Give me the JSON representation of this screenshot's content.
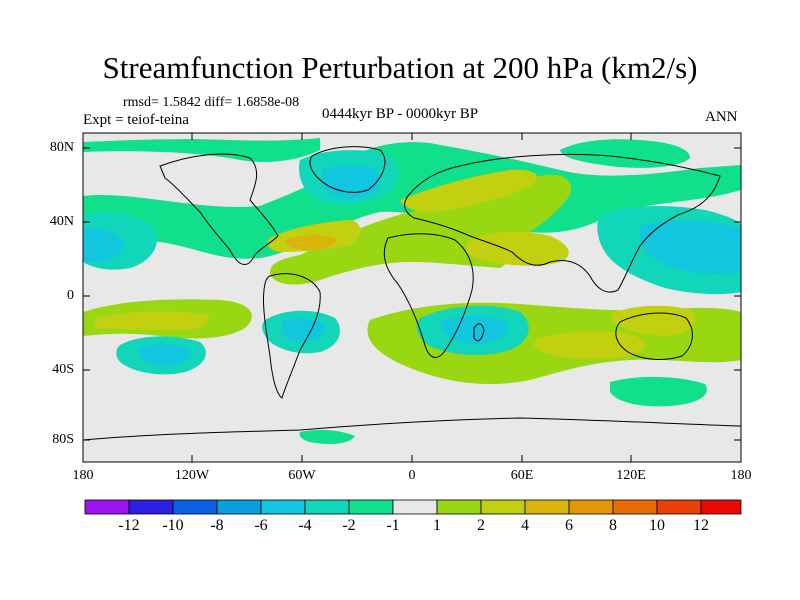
{
  "title": "Streamfunction Perturbation at 200 hPa (km2/s)",
  "stats": "rmsd= 1.5842 diff= 1.6858e-08",
  "period": "0444kyr BP - 0000kyr BP",
  "experiment": "Expt = teiof-teina",
  "season": "ANN",
  "lat_labels": [
    "80N",
    "40N",
    "0",
    "40S",
    "80S"
  ],
  "lon_labels": [
    "180",
    "120W",
    "60W",
    "0",
    "60E",
    "120E",
    "180"
  ],
  "colorbar": {
    "colors": [
      "#9a14ef",
      "#2d1fe3",
      "#0b60e4",
      "#089edf",
      "#12c6e0",
      "#12d6ba",
      "#10df8c",
      "#e8e8e8",
      "#9ad713",
      "#c2d00f",
      "#d9b40b",
      "#e39607",
      "#e86b06",
      "#ea4206",
      "#e80a05"
    ],
    "labels": [
      "-12",
      "-10",
      "-8",
      "-6",
      "-4",
      "-2",
      "-1",
      "1",
      "2",
      "4",
      "6",
      "8",
      "10",
      "12"
    ]
  },
  "colors": {
    "neg_strong": "#12c6e0",
    "neg_mid": "#12d6ba",
    "neg_weak": "#10df8c",
    "neutral": "#e8e8e8",
    "pos_weak": "#9ad713",
    "pos_mid": "#c2d00f",
    "pos_strong": "#d9b40b"
  }
}
